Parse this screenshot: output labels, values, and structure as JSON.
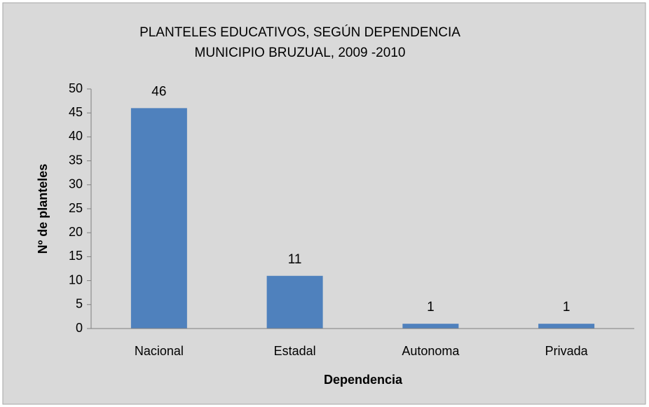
{
  "chart_data": {
    "type": "bar",
    "title": "PLANTELES EDUCATIVOS, SEGÚN DEPENDENCIA",
    "subtitle": "MUNICIPIO BRUZUAL, 2009 -2010",
    "x_label": "Dependencia",
    "y_label": "Nº de planteles",
    "categories": [
      "Nacional",
      "Estadal",
      "Autonoma",
      "Privada"
    ],
    "values": [
      46,
      11,
      1,
      1
    ],
    "color": "#4f81bd",
    "ylim": [
      0,
      50
    ],
    "yticks": [
      0,
      5,
      10,
      15,
      20,
      25,
      30,
      35,
      40,
      45,
      50
    ],
    "grid": false
  }
}
